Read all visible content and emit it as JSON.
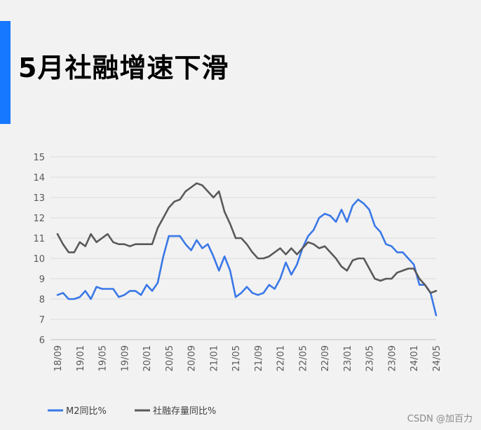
{
  "page": {
    "title": "5月社融增速下滑",
    "watermark": "CSDN @加百力",
    "accent_color": "#1677ff",
    "background": "#f2f2f2"
  },
  "chart_data": {
    "type": "line",
    "title": "",
    "xlabel": "",
    "ylabel": "",
    "ylim": [
      6,
      15
    ],
    "yticks": [
      6,
      7,
      8,
      9,
      10,
      11,
      12,
      13,
      14,
      15
    ],
    "grid": true,
    "legend_position": "bottom-left",
    "x": [
      "2018-09",
      "2018-10",
      "2018-11",
      "2018-12",
      "2019-01",
      "2019-02",
      "2019-03",
      "2019-04",
      "2019-05",
      "2019-06",
      "2019-07",
      "2019-08",
      "2019-09",
      "2019-10",
      "2019-11",
      "2019-12",
      "2020-01",
      "2020-02",
      "2020-03",
      "2020-04",
      "2020-05",
      "2020-06",
      "2020-07",
      "2020-08",
      "2020-09",
      "2020-10",
      "2020-11",
      "2020-12",
      "2021-01",
      "2021-02",
      "2021-03",
      "2021-04",
      "2021-05",
      "2021-06",
      "2021-07",
      "2021-08",
      "2021-09",
      "2021-10",
      "2021-11",
      "2021-12",
      "2022-01",
      "2022-02",
      "2022-03",
      "2022-04",
      "2022-05",
      "2022-06",
      "2022-07",
      "2022-08",
      "2022-09",
      "2022-10",
      "2022-11",
      "2022-12",
      "2023-01",
      "2023-02",
      "2023-03",
      "2023-04",
      "2023-05",
      "2023-06",
      "2023-07",
      "2023-08",
      "2023-09",
      "2023-10",
      "2023-11",
      "2023-12",
      "2024-01",
      "2024-02",
      "2024-03",
      "2024-04",
      "2024-05"
    ],
    "xtick_labels": [
      "18/09",
      "19/01",
      "19/05",
      "19/09",
      "20/01",
      "20/05",
      "20/09",
      "21/01",
      "21/05",
      "21/09",
      "22/01",
      "22/05",
      "22/09",
      "23/01",
      "23/05",
      "23/09",
      "24/01",
      "24/05"
    ],
    "series": [
      {
        "name": "M2同比%",
        "color": "#3a78e7",
        "values": [
          8.2,
          8.3,
          8.0,
          8.0,
          8.1,
          8.4,
          8.0,
          8.6,
          8.5,
          8.5,
          8.5,
          8.1,
          8.2,
          8.4,
          8.4,
          8.2,
          8.7,
          8.4,
          8.8,
          10.1,
          11.1,
          11.1,
          11.1,
          10.7,
          10.4,
          10.9,
          10.5,
          10.7,
          10.1,
          9.4,
          10.1,
          9.4,
          8.1,
          8.3,
          8.6,
          8.3,
          8.2,
          8.3,
          8.7,
          8.5,
          9.0,
          9.8,
          9.2,
          9.7,
          10.5,
          11.1,
          11.4,
          12.0,
          12.2,
          12.1,
          11.8,
          12.4,
          11.8,
          12.6,
          12.9,
          12.7,
          12.4,
          11.6,
          11.3,
          10.7,
          10.6,
          10.3,
          10.3,
          10.0,
          9.7,
          8.7,
          8.7,
          8.3,
          7.2
        ]
      },
      {
        "name": "社融存量同比%",
        "color": "#595959",
        "values": [
          11.2,
          10.7,
          10.3,
          10.3,
          10.8,
          10.6,
          11.2,
          10.8,
          11.0,
          11.2,
          10.8,
          10.7,
          10.7,
          10.6,
          10.7,
          10.7,
          10.7,
          10.7,
          11.5,
          12.0,
          12.5,
          12.8,
          12.9,
          13.3,
          13.5,
          13.7,
          13.6,
          13.3,
          13.0,
          13.3,
          12.3,
          11.7,
          11.0,
          11.0,
          10.7,
          10.3,
          10.0,
          10.0,
          10.1,
          10.3,
          10.5,
          10.2,
          10.5,
          10.2,
          10.5,
          10.8,
          10.7,
          10.5,
          10.6,
          10.3,
          10.0,
          9.6,
          9.4,
          9.9,
          10.0,
          10.0,
          9.5,
          9.0,
          8.9,
          9.0,
          9.0,
          9.3,
          9.4,
          9.5,
          9.5,
          9.0,
          8.7,
          8.3,
          8.4
        ]
      }
    ]
  }
}
